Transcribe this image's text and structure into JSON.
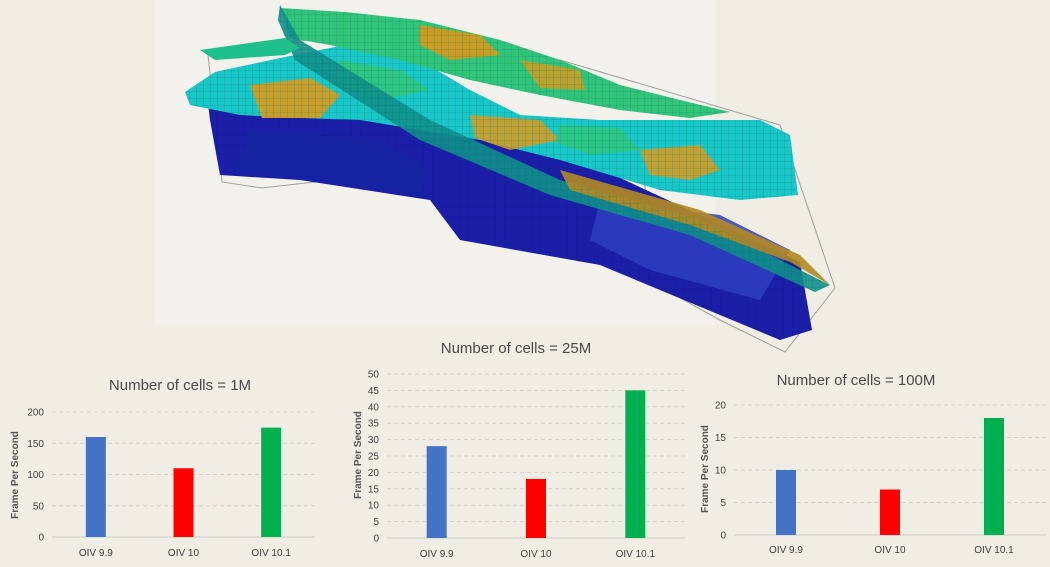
{
  "chart_data": [
    {
      "type": "bar",
      "title": "Number of cells = 1M",
      "ylabel": "Frame Per Second",
      "xlabel": "",
      "categories": [
        "OIV 9.9",
        "OIV 10",
        "OIV 10.1"
      ],
      "values": [
        160,
        110,
        175
      ],
      "colors": [
        "#4472c4",
        "#ff0000",
        "#00b050"
      ],
      "ylim": [
        0,
        200
      ],
      "yticks": [
        0,
        50,
        100,
        150,
        200
      ],
      "grid": true
    },
    {
      "type": "bar",
      "title": "Number of cells  = 25M",
      "ylabel": "Frame Per Second",
      "xlabel": "",
      "categories": [
        "OIV 9.9",
        "OIV 10",
        "OIV 10.1"
      ],
      "values": [
        28,
        18,
        45
      ],
      "colors": [
        "#4472c4",
        "#ff0000",
        "#00b050"
      ],
      "ylim": [
        0,
        50
      ],
      "yticks": [
        0,
        5,
        10,
        15,
        20,
        25,
        30,
        35,
        40,
        45,
        50
      ],
      "grid": true
    },
    {
      "type": "bar",
      "title": "Number of cells  =  100M",
      "ylabel": "Frame Per Second",
      "xlabel": "",
      "categories": [
        "OIV 9.9",
        "OIV 10",
        "OIV 10.1"
      ],
      "values": [
        10,
        7,
        18
      ],
      "colors": [
        "#4472c4",
        "#ff0000",
        "#00b050"
      ],
      "ylim": [
        0,
        20
      ],
      "yticks": [
        0,
        5,
        10,
        15,
        20
      ],
      "grid": true
    }
  ],
  "illustration": {
    "icon": "reservoir-grid-3d-model",
    "colors": {
      "deep_blue": "#1b1fa8",
      "cyan": "#19c6c8",
      "green": "#2fc47a",
      "gold": "#d89a1c",
      "teal": "#0f8f8a"
    }
  }
}
